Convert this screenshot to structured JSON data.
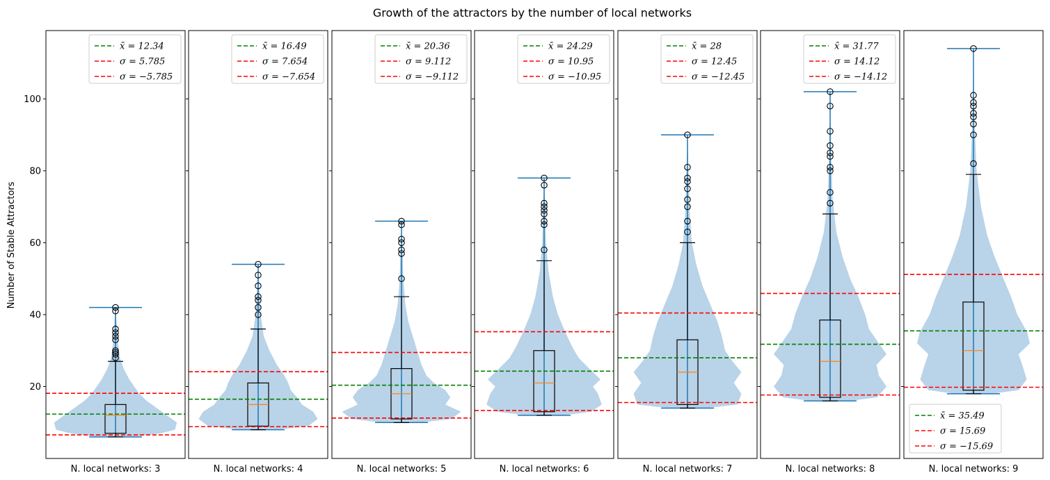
{
  "chart_data": {
    "type": "violin-box",
    "title": "Growth of the attractors by the number of local networks",
    "ylabel": "Number of Stable Attractors",
    "ylim": [
      0,
      119
    ],
    "yticks": [
      20,
      40,
      60,
      80,
      100
    ],
    "colors": {
      "violin": "#a8c8e2",
      "whisker": "#1f77b4",
      "box": "#000000",
      "median": "#ff7f0e",
      "mean_line": "#008000",
      "sigma_line": "#ff0000"
    },
    "panels": [
      {
        "xlabel": "N. local networks: 3",
        "legend_position": "top-right",
        "legend": [
          "x̄ = 12.34",
          "σ = 5.785",
          "σ = −5.785"
        ],
        "mean": 12.34,
        "upper": 18.13,
        "lower": 6.56,
        "min": 6,
        "max": 42,
        "q1": 7,
        "median": 12,
        "q3": 15,
        "whisker_high": 27,
        "outliers": [
          28,
          29,
          29.5,
          30,
          33,
          34,
          35,
          36,
          41,
          42
        ],
        "violin": [
          [
            6,
            0.3
          ],
          [
            7,
            0.72
          ],
          [
            8,
            0.95
          ],
          [
            10,
            0.98
          ],
          [
            12,
            0.82
          ],
          [
            14,
            0.66
          ],
          [
            16,
            0.5
          ],
          [
            18,
            0.38
          ],
          [
            20,
            0.3
          ],
          [
            22,
            0.22
          ],
          [
            25,
            0.13
          ],
          [
            28,
            0.07
          ],
          [
            32,
            0.04
          ],
          [
            37,
            0.02
          ],
          [
            42,
            0
          ]
        ]
      },
      {
        "xlabel": "N. local networks: 4",
        "legend_position": "top-right",
        "legend": [
          "x̄ = 16.49",
          "σ = 7.654",
          "σ = −7.654"
        ],
        "mean": 16.49,
        "upper": 24.14,
        "lower": 8.84,
        "min": 8,
        "max": 54,
        "q1": 9,
        "median": 15,
        "q3": 21,
        "whisker_high": 36,
        "outliers": [
          40,
          42,
          44,
          45,
          48,
          51,
          54
        ],
        "violin": [
          [
            8,
            0.3
          ],
          [
            9,
            0.8
          ],
          [
            11,
            0.95
          ],
          [
            13,
            0.88
          ],
          [
            15,
            0.7
          ],
          [
            17,
            0.62
          ],
          [
            19,
            0.52
          ],
          [
            21,
            0.48
          ],
          [
            23,
            0.42
          ],
          [
            26,
            0.3
          ],
          [
            30,
            0.18
          ],
          [
            34,
            0.09
          ],
          [
            40,
            0.04
          ],
          [
            47,
            0.02
          ],
          [
            54,
            0
          ]
        ]
      },
      {
        "xlabel": "N. local networks: 5",
        "legend_position": "top-right",
        "legend": [
          "x̄ = 20.36",
          "σ = 9.112",
          "σ = −9.112"
        ],
        "mean": 20.36,
        "upper": 29.47,
        "lower": 11.25,
        "min": 10,
        "max": 66,
        "q1": 11,
        "median": 18,
        "q3": 25,
        "whisker_high": 45,
        "outliers": [
          50,
          57,
          58,
          60,
          61,
          65,
          66
        ],
        "violin": [
          [
            10,
            0.3
          ],
          [
            11,
            0.8
          ],
          [
            13,
            0.95
          ],
          [
            15,
            0.7
          ],
          [
            17,
            0.78
          ],
          [
            19,
            0.7
          ],
          [
            21,
            0.52
          ],
          [
            23,
            0.4
          ],
          [
            26,
            0.32
          ],
          [
            30,
            0.25
          ],
          [
            34,
            0.18
          ],
          [
            38,
            0.11
          ],
          [
            43,
            0.06
          ],
          [
            50,
            0.03
          ],
          [
            58,
            0.015
          ],
          [
            66,
            0
          ]
        ]
      },
      {
        "xlabel": "N. local networks: 6",
        "legend_position": "top-right",
        "legend": [
          "x̄ = 24.29",
          "σ = 10.95",
          "σ = −10.95"
        ],
        "mean": 24.29,
        "upper": 35.24,
        "lower": 13.34,
        "min": 12,
        "max": 78,
        "q1": 13,
        "median": 21,
        "q3": 30,
        "whisker_high": 55,
        "outliers": [
          58,
          65,
          66,
          68,
          69,
          70,
          71,
          76,
          78
        ],
        "violin": [
          [
            12,
            0.3
          ],
          [
            13,
            0.75
          ],
          [
            15,
            0.92
          ],
          [
            18,
            0.86
          ],
          [
            20,
            0.78
          ],
          [
            22,
            0.9
          ],
          [
            25,
            0.72
          ],
          [
            28,
            0.55
          ],
          [
            31,
            0.45
          ],
          [
            35,
            0.34
          ],
          [
            40,
            0.22
          ],
          [
            45,
            0.14
          ],
          [
            52,
            0.07
          ],
          [
            60,
            0.03
          ],
          [
            70,
            0.015
          ],
          [
            78,
            0
          ]
        ]
      },
      {
        "xlabel": "N. local networks: 7",
        "legend_position": "top-right",
        "legend": [
          "x̄ = 28",
          "σ = 12.45",
          "σ = −12.45"
        ],
        "mean": 28,
        "upper": 40.45,
        "lower": 15.55,
        "min": 14,
        "max": 90,
        "q1": 15,
        "median": 24,
        "q3": 33,
        "whisker_high": 60,
        "outliers": [
          63,
          66,
          70,
          72,
          75,
          77,
          78,
          81,
          90
        ],
        "violin": [
          [
            14,
            0.3
          ],
          [
            15,
            0.8
          ],
          [
            18,
            0.86
          ],
          [
            21,
            0.74
          ],
          [
            24,
            0.86
          ],
          [
            27,
            0.72
          ],
          [
            30,
            0.6
          ],
          [
            34,
            0.55
          ],
          [
            38,
            0.48
          ],
          [
            43,
            0.36
          ],
          [
            48,
            0.24
          ],
          [
            54,
            0.14
          ],
          [
            60,
            0.07
          ],
          [
            70,
            0.03
          ],
          [
            80,
            0.015
          ],
          [
            90,
            0
          ]
        ]
      },
      {
        "xlabel": "N. local networks: 8",
        "legend_position": "top-right",
        "legend": [
          "x̄ = 31.77",
          "σ = 14.12",
          "σ = −14.12"
        ],
        "mean": 31.77,
        "upper": 45.89,
        "lower": 17.65,
        "min": 16,
        "max": 102,
        "q1": 17,
        "median": 27,
        "q3": 38.5,
        "whisker_high": 68,
        "outliers": [
          71,
          74,
          80,
          81,
          84,
          85,
          87,
          91,
          98,
          102
        ],
        "violin": [
          [
            16,
            0.3
          ],
          [
            17,
            0.75
          ],
          [
            20,
            0.9
          ],
          [
            23,
            0.78
          ],
          [
            26,
            0.74
          ],
          [
            29,
            0.9
          ],
          [
            32,
            0.78
          ],
          [
            36,
            0.62
          ],
          [
            40,
            0.56
          ],
          [
            45,
            0.45
          ],
          [
            50,
            0.32
          ],
          [
            56,
            0.2
          ],
          [
            63,
            0.1
          ],
          [
            72,
            0.04
          ],
          [
            85,
            0.015
          ],
          [
            102,
            0
          ]
        ]
      },
      {
        "xlabel": "N. local networks: 9",
        "legend_position": "bottom-left",
        "legend": [
          "x̄ = 35.49",
          "σ = 15.69",
          "σ = −15.69"
        ],
        "mean": 35.49,
        "upper": 51.18,
        "lower": 19.8,
        "min": 18,
        "max": 114,
        "q1": 19,
        "median": 30,
        "q3": 43.5,
        "whisker_high": 79,
        "outliers": [
          82,
          90,
          93,
          95,
          96,
          98,
          99,
          101,
          114
        ],
        "violin": [
          [
            18,
            0.3
          ],
          [
            19,
            0.72
          ],
          [
            22,
            0.85
          ],
          [
            26,
            0.78
          ],
          [
            29,
            0.72
          ],
          [
            32,
            0.9
          ],
          [
            35,
            0.86
          ],
          [
            40,
            0.7
          ],
          [
            45,
            0.6
          ],
          [
            50,
            0.48
          ],
          [
            56,
            0.34
          ],
          [
            62,
            0.22
          ],
          [
            70,
            0.12
          ],
          [
            80,
            0.05
          ],
          [
            95,
            0.015
          ],
          [
            114,
            0
          ]
        ]
      }
    ]
  }
}
